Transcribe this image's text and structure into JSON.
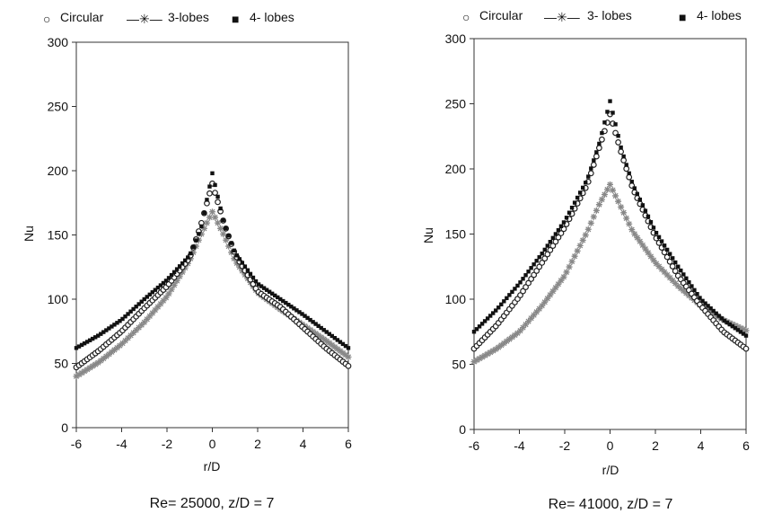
{
  "chart_data": [
    {
      "type": "scatter",
      "caption": "Re= 25000, z/D = 7",
      "xlabel": "r/D",
      "ylabel": "Nu",
      "xlim": [
        -6,
        6
      ],
      "ylim": [
        0,
        300
      ],
      "xticks": [
        "-6",
        "-4",
        "-2",
        "0",
        "2",
        "4",
        "6"
      ],
      "yticks": [
        "0",
        "50",
        "100",
        "150",
        "200",
        "250",
        "300"
      ],
      "legend": {
        "position": "top",
        "entries": [
          "Circular",
          "3-lobes",
          "4- lobes"
        ]
      },
      "grid": false,
      "series": [
        {
          "name": "Circular",
          "marker": "open-circle",
          "color": "#222222",
          "x": [
            -6,
            -5,
            -4,
            -3,
            -2,
            -1,
            -0.5,
            0,
            0.5,
            1,
            2,
            3,
            4,
            5,
            6
          ],
          "y": [
            47,
            60,
            75,
            93,
            110,
            132,
            158,
            190,
            160,
            135,
            106,
            94,
            78,
            62,
            48
          ]
        },
        {
          "name": "3-lobes",
          "marker": "asterisk",
          "color": "#888888",
          "x": [
            -6,
            -5,
            -4,
            -3,
            -2,
            -1,
            -0.5,
            0,
            0.5,
            1,
            2,
            3,
            4,
            5,
            6
          ],
          "y": [
            40,
            51,
            65,
            82,
            102,
            130,
            150,
            168,
            150,
            130,
            105,
            92,
            80,
            68,
            55
          ]
        },
        {
          "name": "4- lobes",
          "marker": "filled-square",
          "color": "#111111",
          "x": [
            -6,
            -5,
            -4,
            -3,
            -2,
            -1,
            -0.5,
            0,
            0.5,
            1,
            2,
            3,
            4,
            5,
            6
          ],
          "y": [
            62,
            72,
            84,
            100,
            115,
            134,
            155,
            198,
            160,
            136,
            112,
            100,
            88,
            75,
            62
          ]
        }
      ]
    },
    {
      "type": "scatter",
      "caption": "Re= 41000, z/D = 7",
      "xlabel": "r/D",
      "ylabel": "Nu",
      "xlim": [
        -6,
        6
      ],
      "ylim": [
        0,
        300
      ],
      "xticks": [
        "-6",
        "-4",
        "-2",
        "0",
        "2",
        "4",
        "6"
      ],
      "yticks": [
        "0",
        "50",
        "100",
        "150",
        "200",
        "250",
        "300"
      ],
      "legend": {
        "position": "top",
        "entries": [
          "Circular",
          "3- lobes",
          "4- lobes"
        ]
      },
      "grid": false,
      "series": [
        {
          "name": "Circular",
          "marker": "open-circle",
          "color": "#222222",
          "x": [
            -6,
            -5,
            -4,
            -3,
            -2,
            -1,
            -0.5,
            0,
            0.5,
            1,
            2,
            3,
            4,
            5,
            6
          ],
          "y": [
            62,
            80,
            102,
            128,
            155,
            188,
            215,
            242,
            212,
            185,
            148,
            118,
            95,
            75,
            62
          ]
        },
        {
          "name": "3- lobes",
          "marker": "asterisk",
          "color": "#888888",
          "x": [
            -6,
            -5,
            -4,
            -3,
            -2,
            -1,
            -0.5,
            0,
            0.5,
            1,
            2,
            3,
            4,
            5,
            6
          ],
          "y": [
            52,
            62,
            75,
            95,
            118,
            152,
            172,
            188,
            170,
            152,
            128,
            110,
            95,
            84,
            76
          ]
        },
        {
          "name": "4- lobes",
          "marker": "filled-square",
          "color": "#111111",
          "x": [
            -6,
            -5,
            -4,
            -3,
            -2,
            -1,
            -0.5,
            0,
            0.5,
            1,
            2,
            3,
            4,
            5,
            6
          ],
          "y": [
            75,
            92,
            112,
            135,
            160,
            192,
            218,
            252,
            215,
            188,
            152,
            125,
            100,
            84,
            72
          ]
        }
      ]
    }
  ]
}
